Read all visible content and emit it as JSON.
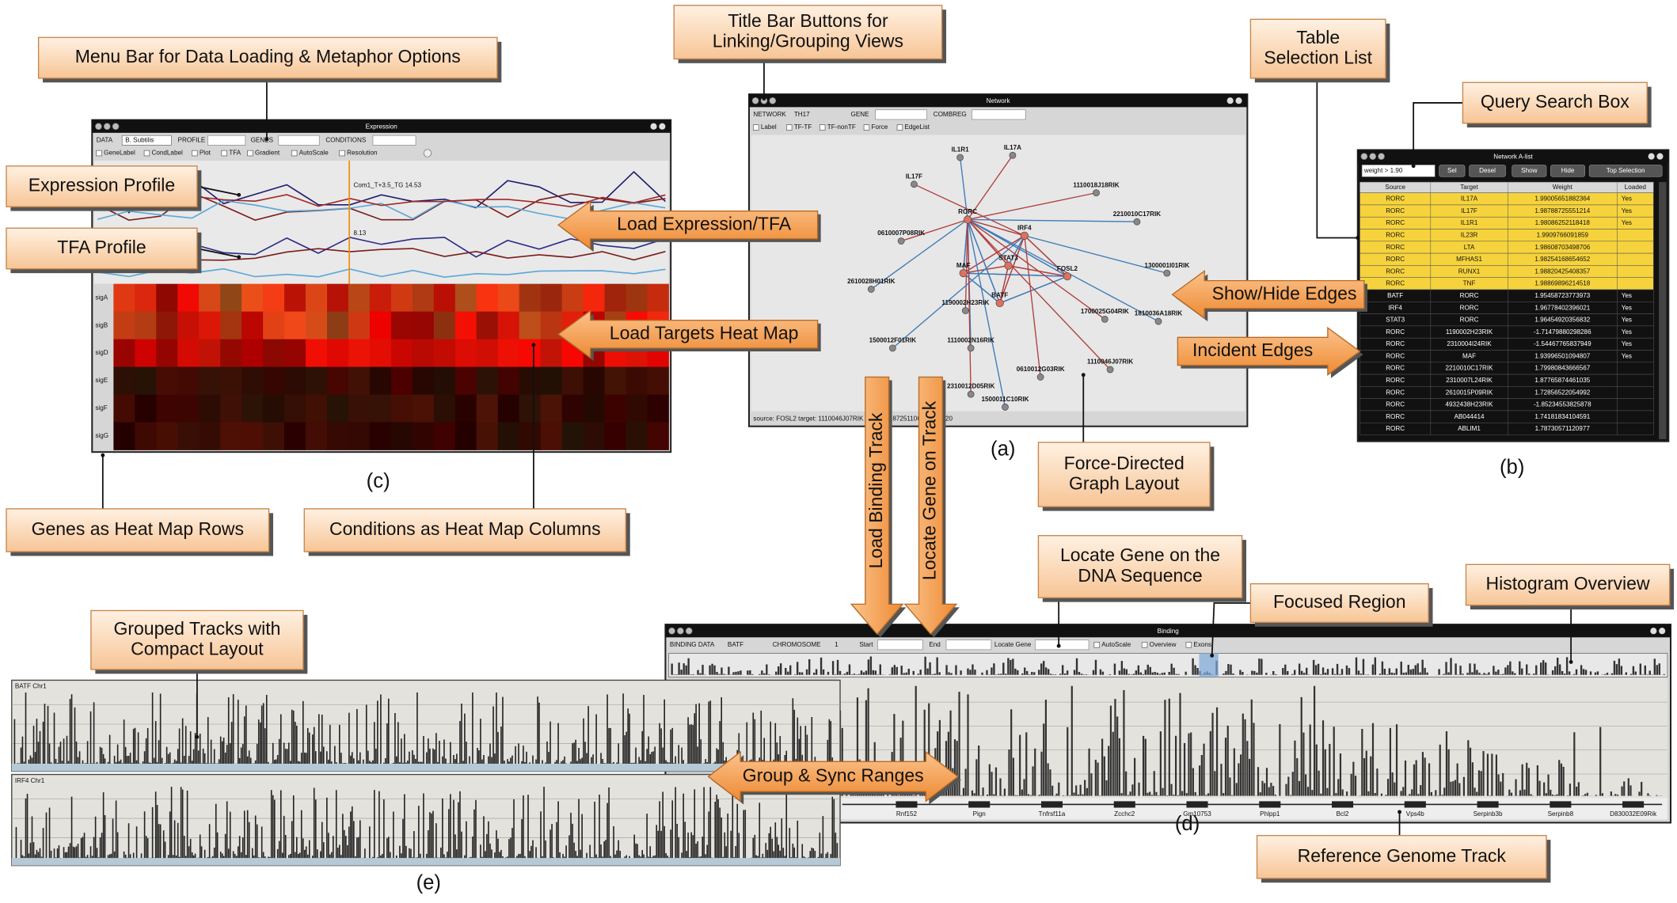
{
  "callouts": [
    {
      "lines": [
        "Menu Bar for Data Loading & Metaphor Options"
      ]
    },
    {
      "lines": [
        "Title Bar Buttons for",
        "Linking/Grouping Views"
      ]
    },
    {
      "lines": [
        "Table",
        "Selection List"
      ]
    },
    {
      "lines": [
        "Query Search Box"
      ]
    },
    {
      "lines": [
        "Expression Profile"
      ]
    },
    {
      "lines": [
        "TFA Profile"
      ]
    },
    {
      "lines": [
        "Force-Directed",
        "Graph Layout"
      ]
    },
    {
      "lines": [
        "Genes as Heat Map Rows"
      ]
    },
    {
      "lines": [
        "Conditions as Heat Map Columns"
      ]
    },
    {
      "lines": [
        "Locate Gene on the",
        "DNA Sequence"
      ]
    },
    {
      "lines": [
        "Focused Region"
      ]
    },
    {
      "lines": [
        "Histogram Overview"
      ]
    },
    {
      "lines": [
        "Grouped Tracks with",
        "Compact Layout"
      ]
    },
    {
      "lines": [
        "Reference Genome Track"
      ]
    }
  ],
  "arrows": [
    {
      "text": "Load Expression/TFA"
    },
    {
      "text": "Load Targets Heat Map"
    },
    {
      "text": "Show/Hide Edges"
    },
    {
      "text": "Incident Edges"
    },
    {
      "text": "Group & Sync Ranges"
    },
    {
      "text": "Load Binding Track"
    },
    {
      "text": "Locate Gene on Track"
    }
  ],
  "panel_labels": [
    "(a)",
    "(b)",
    "(c)",
    "(d)",
    "(e)"
  ],
  "expression": {
    "title": "Expression",
    "controls": [
      "DATA",
      "B. Subtilis",
      "PROFILE",
      "GENES",
      "CONDITIONS"
    ],
    "options": [
      "GeneLabel",
      "CondLabel",
      "Plot",
      "TFA",
      "Gradient",
      "AutoScale",
      "Resolution"
    ],
    "annotations": [
      "Com1_T+3.5_TG 14.53",
      "8.13"
    ],
    "rows": [
      "sigA",
      "sigB",
      "sigD",
      "sigE",
      "sigF",
      "sigG"
    ]
  },
  "network": {
    "title": "Network",
    "controls": [
      "NETWORK",
      "TH17",
      "GENE",
      "COMBREG"
    ],
    "options": [
      "Label",
      "TF-TF",
      "TF-nonTF",
      "Force",
      "EdgeList"
    ],
    "nodes": [
      "IL1R1",
      "IL17A",
      "IL17F",
      "1110018J18RIK",
      "RORC",
      "IRF4",
      "2210010C17RIK",
      "0610007P08RIK",
      "MAF",
      "STAT3",
      "FOSL2",
      "1300001I01RIK",
      "2610028H01RIK",
      "1190002H23RIK",
      "BATF",
      "1700025G04RIK",
      "1810036A18RIK",
      "1500012F01RIK",
      "1110002N16RIK",
      "1110046J07RIK",
      "0610012G03RIK",
      "2310012D05RIK",
      "1500011C10RIK"
    ],
    "status": "source: FOSL2 target: 1110046J07RIK weight: 1.8725110601 id: 2820"
  },
  "alist": {
    "title": "Network A-list",
    "query": "weight > 1.90",
    "buttons": [
      "Sel",
      "Desel",
      "Show",
      "Hide",
      "Top Selection"
    ],
    "columns": [
      "Source",
      "Target",
      "Weight",
      "Loaded"
    ],
    "rows": [
      {
        "source": "RORC",
        "target": "IL17A",
        "weight": "1.99005651882364",
        "loaded": "Yes",
        "selected": true
      },
      {
        "source": "RORC",
        "target": "IL17F",
        "weight": "1.98788725551214",
        "loaded": "Yes",
        "selected": true
      },
      {
        "source": "RORC",
        "target": "IL1R1",
        "weight": "1.98086252118418",
        "loaded": "Yes",
        "selected": true
      },
      {
        "source": "RORC",
        "target": "IL23R",
        "weight": "1.9909766091859",
        "loaded": null,
        "selected": true
      },
      {
        "source": "RORC",
        "target": "LTA",
        "weight": "1.98608703498706",
        "loaded": null,
        "selected": true
      },
      {
        "source": "RORC",
        "target": "MFHAS1",
        "weight": "1.98254168654652",
        "loaded": null,
        "selected": true
      },
      {
        "source": "RORC",
        "target": "RUNX1",
        "weight": "1.98820425408357",
        "loaded": null,
        "selected": true
      },
      {
        "source": "RORC",
        "target": "TNF",
        "weight": "1.98869896214518",
        "loaded": null,
        "selected": true
      },
      {
        "source": "BATF",
        "target": "RORC",
        "weight": "1.95458723773973",
        "loaded": "Yes",
        "selected": false
      },
      {
        "source": "IRF4",
        "target": "RORC",
        "weight": "1.96778402396021",
        "loaded": "Yes",
        "selected": false
      },
      {
        "source": "STAT3",
        "target": "RORC",
        "weight": "1.96454920356832",
        "loaded": "Yes",
        "selected": false
      },
      {
        "source": "RORC",
        "target": "1190002H23RIK",
        "weight": "-1.71479880298286",
        "loaded": "Yes",
        "selected": false
      },
      {
        "source": "RORC",
        "target": "2310004I24RIK",
        "weight": "-1.54467765837949",
        "loaded": "Yes",
        "selected": false
      },
      {
        "source": "RORC",
        "target": "MAF",
        "weight": "1.93996501094807",
        "loaded": "Yes",
        "selected": false
      },
      {
        "source": "RORC",
        "target": "2210010C17RIK",
        "weight": "1.79980843666567",
        "loaded": null,
        "selected": false
      },
      {
        "source": "RORC",
        "target": "2310007L24RIK",
        "weight": "1.87765874461035",
        "loaded": null,
        "selected": false
      },
      {
        "source": "RORC",
        "target": "2610015P09RIK",
        "weight": "1.72856522054992",
        "loaded": null,
        "selected": false
      },
      {
        "source": "RORC",
        "target": "4932438H23RIK",
        "weight": "-1.85234553825878",
        "loaded": null,
        "selected": false
      },
      {
        "source": "RORC",
        "target": "AB044414",
        "weight": "1.74181834104591",
        "loaded": null,
        "selected": false
      },
      {
        "source": "RORC",
        "target": "ABLIM1",
        "weight": "1.78730571120977",
        "loaded": null,
        "selected": false
      }
    ]
  },
  "binding": {
    "title": "Binding",
    "controls": [
      "BINDING DATA",
      "BATF",
      "CHROMOSOME",
      "1",
      "Start",
      "End",
      "Locate Gene"
    ],
    "options": [
      "AutoScale",
      "Overview",
      "Exons"
    ],
    "genes": [
      "Rnf152",
      "Pign",
      "Tnfrsf11a",
      "Zcchc2",
      "Gm10753",
      "Phlpp1",
      "Bcl2",
      "Vps4b",
      "Serpinb3b",
      "Serpinb8",
      "D830032E09Rik"
    ]
  },
  "tracks": [
    "BATF Chr1",
    "IRF4 Chr1"
  ]
}
